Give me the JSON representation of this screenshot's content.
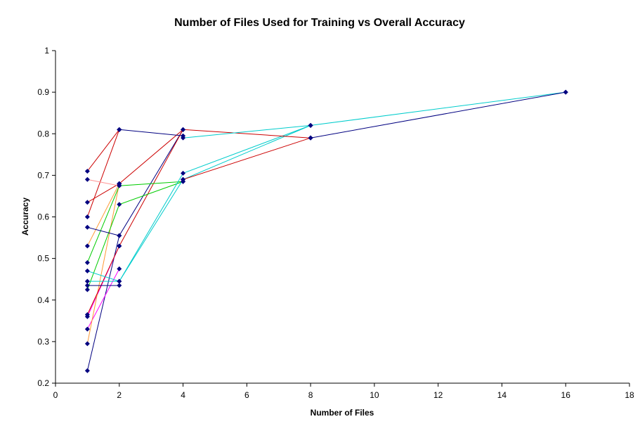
{
  "chart_data": {
    "type": "line",
    "title": "Number of Files Used for Training vs Overall Accuracy",
    "xlabel": "Number of Files",
    "ylabel": "Accuracy",
    "xlim": [
      0,
      18
    ],
    "ylim": [
      0.2,
      1
    ],
    "x_ticks": [
      0,
      2,
      4,
      6,
      8,
      10,
      12,
      14,
      16,
      18
    ],
    "y_ticks": [
      0.2,
      0.3,
      0.4,
      0.5,
      0.6,
      0.7,
      0.8,
      0.9,
      1
    ],
    "y_tick_labels": [
      "0.2",
      "0.3",
      "0.4",
      "0.5",
      "0.6",
      "0.7",
      "0.8",
      "0.9",
      "1"
    ],
    "grid": false,
    "legend": "none",
    "marker_color": "#000080",
    "series": [
      {
        "color": "#000080",
        "points": [
          [
            1,
            0.23
          ],
          [
            2,
            0.555
          ],
          [
            4,
            0.81
          ]
        ]
      },
      {
        "color": "#ff00ff",
        "points": [
          [
            1,
            0.33
          ],
          [
            2,
            0.475
          ]
        ]
      },
      {
        "color": "#ff00ff",
        "points": [
          [
            1,
            0.36
          ],
          [
            2,
            0.53
          ]
        ]
      },
      {
        "color": "#ff9933",
        "points": [
          [
            1,
            0.295
          ],
          [
            2,
            0.68
          ]
        ]
      },
      {
        "color": "#cc0000",
        "points": [
          [
            1,
            0.365
          ],
          [
            2,
            0.53
          ],
          [
            4,
            0.81
          ]
        ]
      },
      {
        "color": "#00cc00",
        "points": [
          [
            1,
            0.425
          ],
          [
            2,
            0.63
          ],
          [
            4,
            0.685
          ]
        ]
      },
      {
        "color": "#00cc00",
        "points": [
          [
            1,
            0.49
          ],
          [
            2,
            0.675
          ],
          [
            4,
            0.685
          ]
        ]
      },
      {
        "color": "#00cccc",
        "points": [
          [
            1,
            0.445
          ],
          [
            2,
            0.445
          ],
          [
            4,
            0.69
          ],
          [
            8,
            0.82
          ],
          [
            16,
            0.9
          ]
        ]
      },
      {
        "color": "#00cccc",
        "points": [
          [
            1,
            0.47
          ],
          [
            2,
            0.445
          ],
          [
            4,
            0.705
          ],
          [
            8,
            0.82
          ]
        ]
      },
      {
        "color": "#ff9933",
        "points": [
          [
            1,
            0.53
          ],
          [
            2,
            0.68
          ]
        ]
      },
      {
        "color": "#000080",
        "points": [
          [
            1,
            0.575
          ],
          [
            2,
            0.555
          ]
        ]
      },
      {
        "color": "#cc0000",
        "points": [
          [
            1,
            0.6
          ],
          [
            2,
            0.81
          ]
        ]
      },
      {
        "color": "#cc0000",
        "points": [
          [
            1,
            0.635
          ],
          [
            2,
            0.68
          ],
          [
            4,
            0.81
          ],
          [
            8,
            0.79
          ]
        ]
      },
      {
        "color": "#ff9999",
        "points": [
          [
            1,
            0.69
          ],
          [
            2,
            0.675
          ]
        ]
      },
      {
        "color": "#cc0000",
        "points": [
          [
            1,
            0.71
          ],
          [
            2,
            0.81
          ]
        ]
      },
      {
        "color": "#000080",
        "points": [
          [
            2,
            0.81
          ],
          [
            4,
            0.795
          ]
        ]
      },
      {
        "color": "#00cccc",
        "points": [
          [
            4,
            0.79
          ],
          [
            8,
            0.82
          ]
        ]
      },
      {
        "color": "#cc0000",
        "points": [
          [
            4,
            0.69
          ],
          [
            8,
            0.79
          ]
        ]
      },
      {
        "color": "#000080",
        "points": [
          [
            8,
            0.79
          ],
          [
            16,
            0.9
          ]
        ]
      },
      {
        "color": "#000080",
        "points": [
          [
            1,
            0.435
          ],
          [
            2,
            0.435
          ]
        ]
      }
    ]
  }
}
